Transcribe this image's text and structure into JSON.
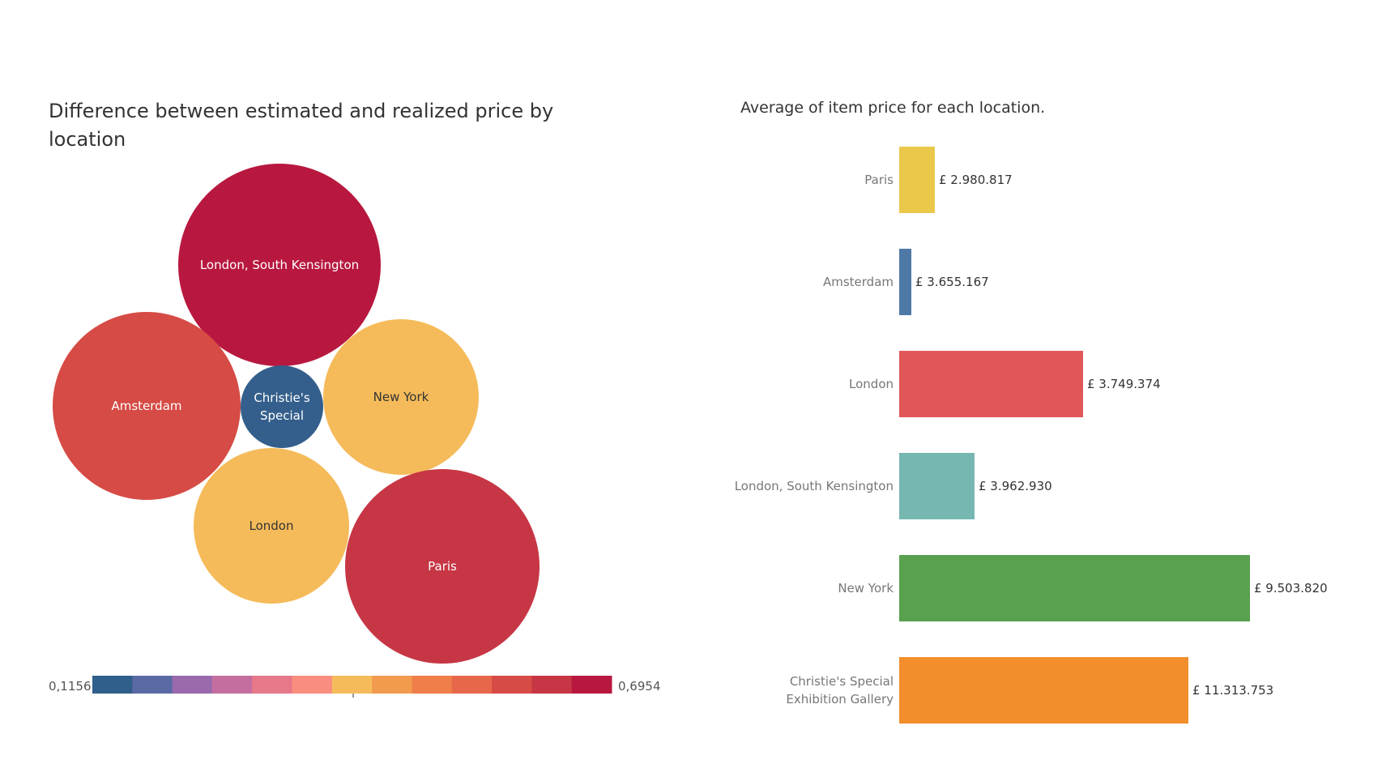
{
  "bubble_chart": {
    "title": "Difference between estimated and realized price by location",
    "legend": {
      "min_label": "0,1156",
      "max_label": "0,6954",
      "min": 0.1156,
      "max": 0.6954
    }
  },
  "bar_chart": {
    "title": "Average of item price for each location."
  },
  "chart_data": [
    {
      "type": "bubble",
      "title": "Difference between estimated and realized price by location",
      "color_scale": {
        "min": 0.1156,
        "max": 0.6954,
        "palette": [
          "#2f5f8a",
          "#5a6aa5",
          "#9a6aad",
          "#c46ea0",
          "#e6788a",
          "#f98e80",
          "#f5bb5a",
          "#f29b4f",
          "#ef7e4a",
          "#e7674a",
          "#d64b45",
          "#c73644",
          "#b8183f"
        ]
      },
      "bubbles": [
        {
          "label": "London, South Kensington",
          "value": 0.6954,
          "color": "#b8183f",
          "text_color": "#ffffff"
        },
        {
          "label": "Amsterdam",
          "value": 0.58,
          "color": "#d64b45",
          "text_color": "#ffffff"
        },
        {
          "label": "Christie's Special",
          "value": 0.1156,
          "color": "#345f8c",
          "text_color": "#ffffff"
        },
        {
          "label": "New York",
          "value": 0.4,
          "color": "#f5bb5a",
          "text_color": "#333333"
        },
        {
          "label": "London",
          "value": 0.4,
          "color": "#f5bb5a",
          "text_color": "#333333"
        },
        {
          "label": "Paris",
          "value": 0.63,
          "color": "#c73644",
          "text_color": "#ffffff"
        }
      ]
    },
    {
      "type": "bar",
      "orientation": "horizontal",
      "title": "Average of item price for each location.",
      "categories": [
        "Paris",
        "Amsterdam",
        "London",
        "London, South Kensington",
        "New York",
        "Christie's Special Exhibition Gallery"
      ],
      "display_labels": [
        [
          "Paris"
        ],
        [
          "Amsterdam"
        ],
        [
          "London"
        ],
        [
          "London, South Kensington"
        ],
        [
          "New York"
        ],
        [
          "Christie's Special",
          "Exhibition Gallery"
        ]
      ],
      "values": [
        2980817,
        3655167,
        3749374,
        3962930,
        9503820,
        11313753
      ],
      "value_labels": [
        "£ 2.980.817",
        "£ 3.655.167",
        "£ 3.749.374",
        "£ 3.962.930",
        "£ 9.503.820",
        "£ 11.313.753"
      ],
      "colors": [
        "#eac84a",
        "#4e79a7",
        "#e15759",
        "#76b7b2",
        "#59a14f",
        "#f28e2b"
      ]
    }
  ]
}
